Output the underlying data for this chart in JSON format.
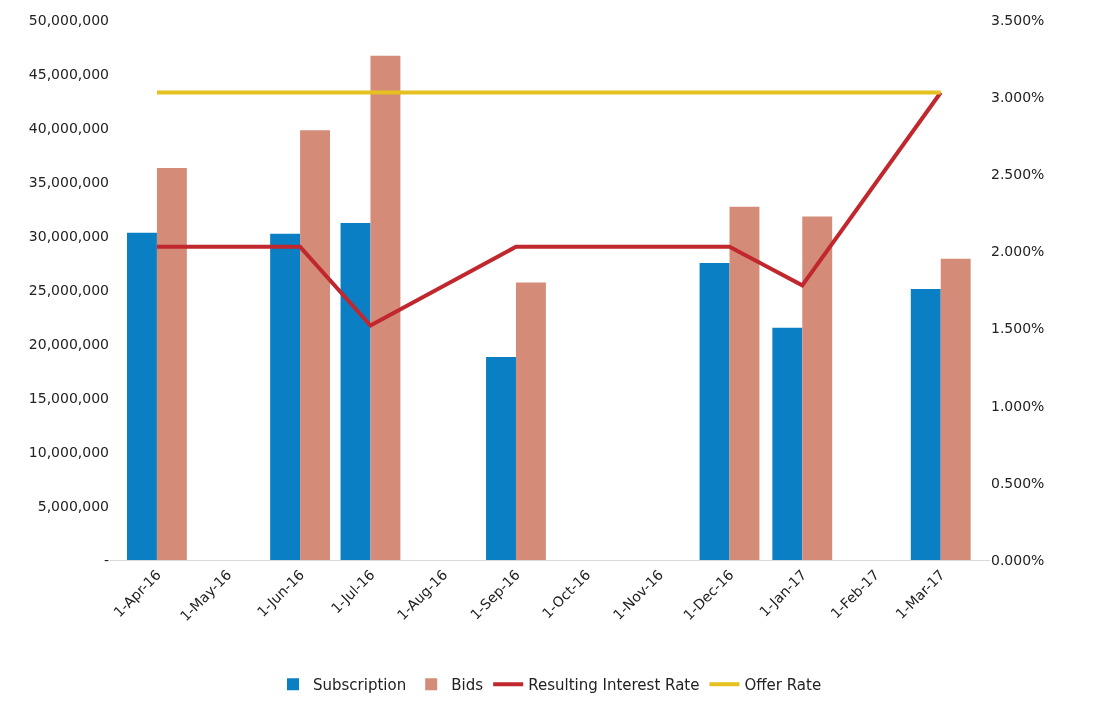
{
  "chart_data": {
    "type": "bar",
    "x": [
      "2016-04-01",
      "2016-06-01",
      "2016-07-01",
      "2016-09-01",
      "2016-12-01",
      "2017-01-01",
      "2017-03-01"
    ],
    "series": [
      {
        "name": "Subscription",
        "color": "#0a7fc4",
        "values": [
          30300000,
          30200000,
          31200000,
          18800000,
          27500000,
          21500000,
          25100000
        ]
      },
      {
        "name": "Bids",
        "color": "#d48b78",
        "values": [
          36300000,
          39800000,
          46700000,
          25700000,
          32700000,
          31800000,
          27900000
        ]
      },
      {
        "name": "Resulting Interest Rate",
        "type": "line",
        "axis": "y2",
        "color": "#c0282d",
        "values": [
          2.03,
          2.03,
          1.52,
          2.03,
          2.03,
          1.78,
          3.03
        ]
      },
      {
        "name": "Offer Rate",
        "type": "line",
        "axis": "y2",
        "color": "#e6c020",
        "values": [
          3.03,
          3.03,
          3.03,
          3.03,
          3.03,
          3.03,
          3.03
        ]
      }
    ],
    "xticks": [
      {
        "value": "2016-04-01",
        "label": "1-Apr-16"
      },
      {
        "value": "2016-05-01",
        "label": "1-May-16"
      },
      {
        "value": "2016-06-01",
        "label": "1-Jun-16"
      },
      {
        "value": "2016-07-01",
        "label": "1-Jul-16"
      },
      {
        "value": "2016-08-01",
        "label": "1-Aug-16"
      },
      {
        "value": "2016-09-01",
        "label": "1-Sep-16"
      },
      {
        "value": "2016-10-01",
        "label": "1-Oct-16"
      },
      {
        "value": "2016-11-01",
        "label": "1-Nov-16"
      },
      {
        "value": "2016-12-01",
        "label": "1-Dec-16"
      },
      {
        "value": "2017-01-01",
        "label": "1-Jan-17"
      },
      {
        "value": "2017-02-01",
        "label": "1-Feb-17"
      },
      {
        "value": "2017-03-01",
        "label": "1-Mar-17"
      }
    ],
    "ylim": [
      0,
      50000000
    ],
    "yticks": [
      {
        "value": 0,
        "label": "-"
      },
      {
        "value": 5000000,
        "label": "5,000,000"
      },
      {
        "value": 10000000,
        "label": "10,000,000"
      },
      {
        "value": 15000000,
        "label": "15,000,000"
      },
      {
        "value": 20000000,
        "label": "20,000,000"
      },
      {
        "value": 25000000,
        "label": "25,000,000"
      },
      {
        "value": 30000000,
        "label": "30,000,000"
      },
      {
        "value": 35000000,
        "label": "35,000,000"
      },
      {
        "value": 40000000,
        "label": "40,000,000"
      },
      {
        "value": 45000000,
        "label": "45,000,000"
      },
      {
        "value": 50000000,
        "label": "50,000,000"
      }
    ],
    "y2lim": [
      0,
      3.5
    ],
    "y2ticks": [
      {
        "value": 0,
        "label": "0.000%"
      },
      {
        "value": 0.5,
        "label": "0.500%"
      },
      {
        "value": 1,
        "label": "1.000%"
      },
      {
        "value": 1.5,
        "label": "1.500%"
      },
      {
        "value": 2,
        "label": "2.000%"
      },
      {
        "value": 2.5,
        "label": "2.500%"
      },
      {
        "value": 3,
        "label": "3.000%"
      },
      {
        "value": 3.5,
        "label": "3.500%"
      }
    ],
    "xlim": [
      "2016-03-12",
      "2017-03-22"
    ],
    "legend": "bottom"
  }
}
